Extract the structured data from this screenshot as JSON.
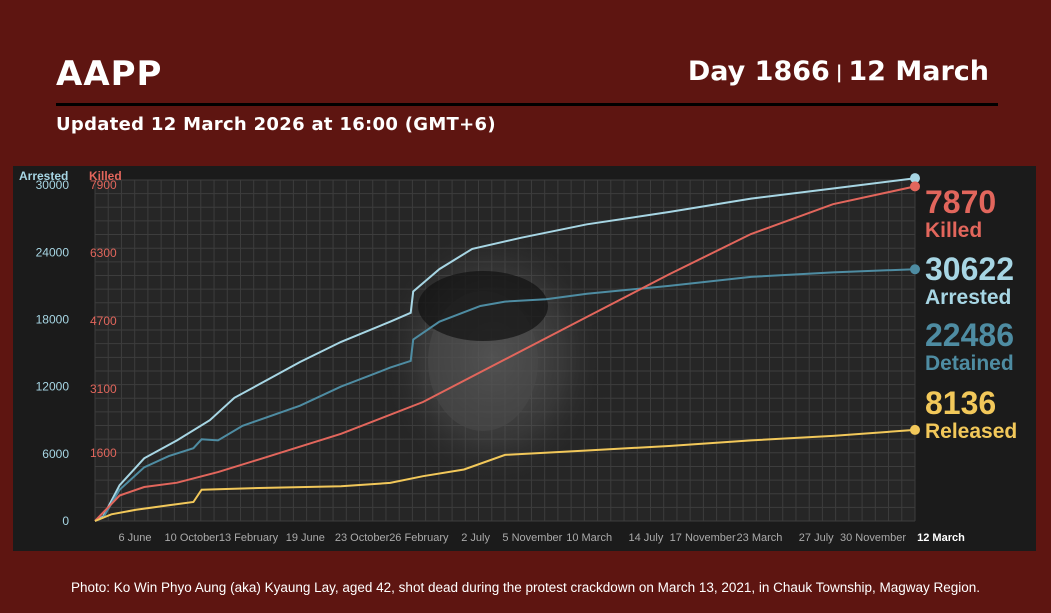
{
  "header": {
    "brand": "AAPP",
    "day_label": "Day 1866",
    "separator": "|",
    "date_label": "12 March",
    "updated": "Updated 12 March 2026 at 16:00 (GMT+6)"
  },
  "caption": "Photo: Ko Win Phyo Aung (aka) Kyaung Lay, aged 42, shot dead during the protest crackdown on March 13, 2021, in Chauk Township, Magway Region.",
  "colors": {
    "background": "#5e1511",
    "panel": "#1b1b1b",
    "arrested": "#a7d6e4",
    "detained": "#4e8ca2",
    "killed": "#e2665c",
    "released": "#f2c85a"
  },
  "chart_data": {
    "type": "line",
    "grid": true,
    "left_axis_label": "Arrested",
    "right_axis_label": "Killed",
    "left_ticks": [
      "0",
      "6000",
      "12000",
      "18000",
      "24000",
      "30000"
    ],
    "right_ticks": [
      "1600",
      "3100",
      "4700",
      "6300",
      "7900"
    ],
    "ylim_left": [
      0,
      30000
    ],
    "x_tick_labels": [
      "6 June",
      "10 October",
      "13 February",
      "19 June",
      "23 October",
      "26 February",
      "2 July",
      "5 November",
      "10 March",
      "14 July",
      "17 November",
      "23 March",
      "27 July",
      "30 November",
      "12 March"
    ],
    "series": [
      {
        "name": "Arrested",
        "value": "30622",
        "axis": "left",
        "points": [
          [
            0,
            0
          ],
          [
            0.01,
            400
          ],
          [
            0.03,
            3200
          ],
          [
            0.06,
            5600
          ],
          [
            0.1,
            7200
          ],
          [
            0.14,
            9000
          ],
          [
            0.17,
            11000
          ],
          [
            0.2,
            12200
          ],
          [
            0.25,
            14200
          ],
          [
            0.3,
            16000
          ],
          [
            0.36,
            17800
          ],
          [
            0.385,
            18600
          ],
          [
            0.388,
            20500
          ],
          [
            0.42,
            22500
          ],
          [
            0.46,
            24300
          ],
          [
            0.52,
            25300
          ],
          [
            0.6,
            26500
          ],
          [
            0.7,
            27600
          ],
          [
            0.8,
            28800
          ],
          [
            0.9,
            29700
          ],
          [
            1.0,
            30622
          ]
        ]
      },
      {
        "name": "Detained",
        "value": "22486",
        "axis": "left",
        "points": [
          [
            0,
            0
          ],
          [
            0.01,
            300
          ],
          [
            0.03,
            2800
          ],
          [
            0.06,
            4800
          ],
          [
            0.09,
            5800
          ],
          [
            0.12,
            6500
          ],
          [
            0.13,
            7300
          ],
          [
            0.15,
            7200
          ],
          [
            0.18,
            8500
          ],
          [
            0.25,
            10300
          ],
          [
            0.3,
            12000
          ],
          [
            0.36,
            13700
          ],
          [
            0.385,
            14300
          ],
          [
            0.388,
            16200
          ],
          [
            0.42,
            17800
          ],
          [
            0.47,
            19200
          ],
          [
            0.5,
            19600
          ],
          [
            0.55,
            19800
          ],
          [
            0.6,
            20300
          ],
          [
            0.7,
            21000
          ],
          [
            0.8,
            21800
          ],
          [
            0.9,
            22200
          ],
          [
            1.0,
            22486
          ]
        ]
      },
      {
        "name": "Killed",
        "value": "7870",
        "axis": "right",
        "points": [
          [
            0,
            0
          ],
          [
            0.01,
            200
          ],
          [
            0.03,
            600
          ],
          [
            0.06,
            800
          ],
          [
            0.1,
            900
          ],
          [
            0.15,
            1150
          ],
          [
            0.2,
            1450
          ],
          [
            0.3,
            2050
          ],
          [
            0.4,
            2800
          ],
          [
            0.5,
            3800
          ],
          [
            0.6,
            4800
          ],
          [
            0.7,
            5800
          ],
          [
            0.8,
            6750
          ],
          [
            0.9,
            7450
          ],
          [
            1.0,
            7870
          ]
        ]
      },
      {
        "name": "Released",
        "value": "8136",
        "axis": "left",
        "points": [
          [
            0,
            0
          ],
          [
            0.02,
            600
          ],
          [
            0.05,
            1000
          ],
          [
            0.09,
            1400
          ],
          [
            0.12,
            1700
          ],
          [
            0.13,
            2800
          ],
          [
            0.2,
            2950
          ],
          [
            0.3,
            3100
          ],
          [
            0.36,
            3400
          ],
          [
            0.4,
            4000
          ],
          [
            0.45,
            4600
          ],
          [
            0.5,
            5900
          ],
          [
            0.6,
            6300
          ],
          [
            0.7,
            6700
          ],
          [
            0.8,
            7200
          ],
          [
            0.9,
            7600
          ],
          [
            1.0,
            8136
          ]
        ]
      }
    ],
    "legend": [
      {
        "value": "7870",
        "label": "Killed"
      },
      {
        "value": "30622",
        "label": "Arrested"
      },
      {
        "value": "22486",
        "label": "Detained"
      },
      {
        "value": "8136",
        "label": "Released"
      }
    ]
  }
}
